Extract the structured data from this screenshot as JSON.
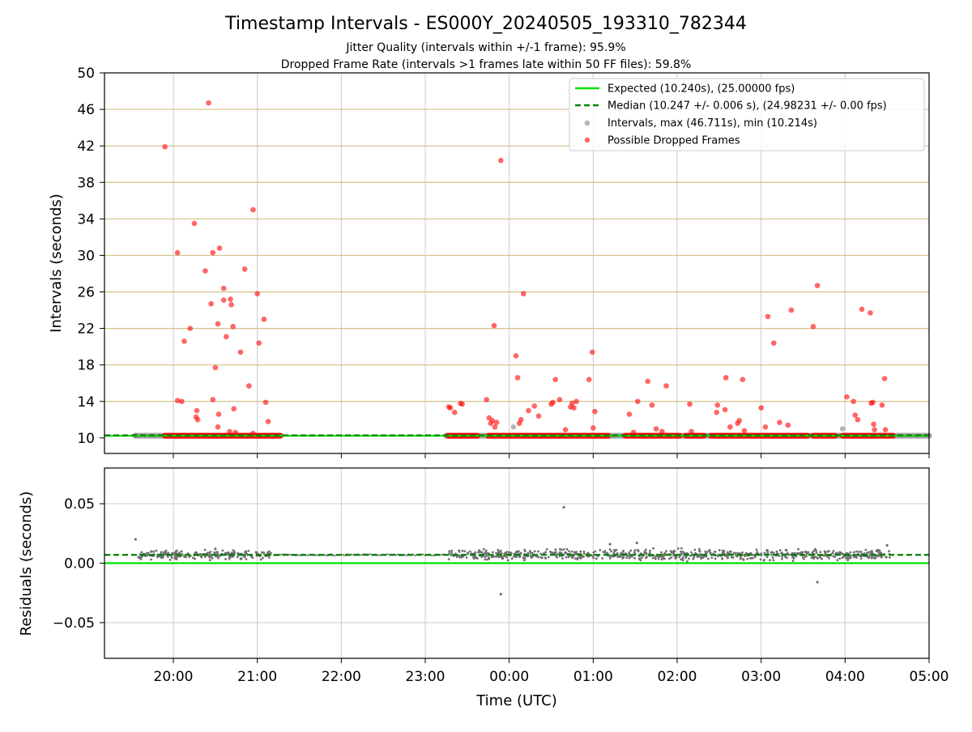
{
  "chart_data": {
    "type": "scatter",
    "title": "Timestamp Intervals - ES000Y_20240505_193310_782344",
    "subtitle_lines": [
      "Jitter Quality (intervals within +/-1 frame): 95.9%",
      "Dropped Frame Rate (intervals >1 frames late within 50 FF files): 59.8%"
    ],
    "xlabel": "Time (UTC)",
    "x_ticks": [
      "20:00",
      "21:00",
      "22:00",
      "23:00",
      "00:00",
      "01:00",
      "02:00",
      "03:00",
      "04:00",
      "05:00"
    ],
    "x_tick_hours": [
      20,
      21,
      22,
      23,
      24,
      25,
      26,
      27,
      28,
      29
    ],
    "xlim_hours": [
      19.18,
      29.0
    ],
    "colors": {
      "expected": "#00e000",
      "median": "#008000",
      "intervals": "#808080",
      "dropped": "#ff0000",
      "hgrid_top": "#d4c08a",
      "grid": "#cccccc"
    },
    "panels": {
      "intervals": {
        "ylabel": "Intervals (seconds)",
        "ylim": [
          8.3,
          50
        ],
        "y_ticks": [
          10,
          14,
          18,
          22,
          26,
          30,
          34,
          38,
          42,
          46,
          50
        ],
        "legend": {
          "position": "top-right",
          "entries": [
            {
              "label": "Expected (10.240s), (25.00000 fps)",
              "kind": "solid-line",
              "color": "#00e000"
            },
            {
              "label": "Median (10.247 +/- 0.006 s), (24.98231 +/- 0.00 fps)",
              "kind": "dashed-line",
              "color": "#008000"
            },
            {
              "label": "Intervals, max (46.711s), min (10.214s)",
              "kind": "marker",
              "color": "#808080"
            },
            {
              "label": "Possible Dropped Frames",
              "kind": "marker",
              "color": "#ff0000"
            }
          ]
        },
        "expected_value": 10.24,
        "median_value": 10.247,
        "baseline_interval_segments": [
          [
            19.55,
            21.28
          ],
          [
            23.25,
            29.0
          ]
        ],
        "dropped_baseline_segments": [
          [
            19.9,
            21.27
          ],
          [
            23.27,
            23.62
          ],
          [
            23.75,
            24.05
          ],
          [
            24.05,
            25.18
          ],
          [
            25.38,
            26.03
          ],
          [
            26.1,
            26.32
          ],
          [
            26.4,
            26.95
          ],
          [
            26.97,
            27.55
          ],
          [
            27.62,
            27.88
          ],
          [
            27.97,
            28.57
          ]
        ],
        "dropped_points": [
          [
            19.9,
            41.9
          ],
          [
            20.05,
            30.3
          ],
          [
            20.05,
            14.1
          ],
          [
            20.1,
            14.0
          ],
          [
            20.13,
            20.6
          ],
          [
            20.2,
            22.0
          ],
          [
            20.25,
            33.5
          ],
          [
            20.27,
            12.3
          ],
          [
            20.28,
            13.0
          ],
          [
            20.29,
            12.0
          ],
          [
            20.38,
            28.3
          ],
          [
            20.42,
            46.7
          ],
          [
            20.45,
            24.7
          ],
          [
            20.47,
            30.3
          ],
          [
            20.47,
            14.2
          ],
          [
            20.5,
            17.7
          ],
          [
            20.53,
            22.5
          ],
          [
            20.53,
            11.2
          ],
          [
            20.54,
            12.6
          ],
          [
            20.55,
            30.8
          ],
          [
            20.6,
            25.1
          ],
          [
            20.6,
            26.4
          ],
          [
            20.63,
            21.1
          ],
          [
            20.67,
            10.7
          ],
          [
            20.68,
            25.2
          ],
          [
            20.69,
            24.6
          ],
          [
            20.71,
            22.2
          ],
          [
            20.72,
            13.2
          ],
          [
            20.74,
            10.6
          ],
          [
            20.8,
            19.4
          ],
          [
            20.85,
            28.5
          ],
          [
            20.9,
            15.7
          ],
          [
            20.95,
            35.0
          ],
          [
            20.95,
            10.5
          ],
          [
            21.0,
            25.8
          ],
          [
            21.02,
            20.4
          ],
          [
            21.08,
            23.0
          ],
          [
            21.1,
            13.9
          ],
          [
            21.13,
            11.8
          ],
          [
            23.28,
            13.4
          ],
          [
            23.3,
            13.3
          ],
          [
            23.35,
            12.8
          ],
          [
            23.42,
            13.8
          ],
          [
            23.44,
            13.7
          ],
          [
            23.73,
            14.2
          ],
          [
            23.76,
            12.2
          ],
          [
            23.78,
            11.6
          ],
          [
            23.8,
            11.9
          ],
          [
            23.82,
            22.3
          ],
          [
            23.83,
            11.2
          ],
          [
            23.85,
            11.7
          ],
          [
            23.9,
            40.4
          ],
          [
            24.08,
            19.0
          ],
          [
            24.1,
            16.6
          ],
          [
            24.12,
            11.6
          ],
          [
            24.14,
            12.0
          ],
          [
            24.17,
            25.8
          ],
          [
            24.23,
            13.0
          ],
          [
            24.3,
            13.5
          ],
          [
            24.35,
            12.4
          ],
          [
            24.5,
            13.7
          ],
          [
            24.52,
            13.9
          ],
          [
            24.55,
            16.4
          ],
          [
            24.6,
            14.2
          ],
          [
            24.67,
            10.9
          ],
          [
            24.73,
            13.4
          ],
          [
            24.75,
            13.8
          ],
          [
            24.77,
            13.3
          ],
          [
            24.8,
            14.0
          ],
          [
            24.95,
            16.4
          ],
          [
            24.99,
            19.4
          ],
          [
            25.0,
            11.1
          ],
          [
            25.02,
            12.9
          ],
          [
            25.43,
            12.6
          ],
          [
            25.48,
            10.6
          ],
          [
            25.53,
            14.0
          ],
          [
            25.65,
            16.2
          ],
          [
            25.7,
            13.6
          ],
          [
            25.75,
            11.0
          ],
          [
            25.82,
            10.7
          ],
          [
            25.87,
            15.7
          ],
          [
            26.15,
            13.7
          ],
          [
            26.17,
            10.7
          ],
          [
            26.47,
            12.8
          ],
          [
            26.48,
            13.6
          ],
          [
            26.57,
            13.1
          ],
          [
            26.58,
            16.6
          ],
          [
            26.63,
            11.2
          ],
          [
            26.72,
            11.6
          ],
          [
            26.74,
            11.9
          ],
          [
            26.78,
            16.4
          ],
          [
            26.8,
            10.8
          ],
          [
            27.0,
            13.3
          ],
          [
            27.05,
            11.2
          ],
          [
            27.08,
            23.3
          ],
          [
            27.15,
            20.4
          ],
          [
            27.22,
            11.7
          ],
          [
            27.32,
            11.4
          ],
          [
            27.36,
            24.0
          ],
          [
            27.62,
            22.2
          ],
          [
            27.67,
            26.7
          ],
          [
            28.02,
            14.5
          ],
          [
            28.1,
            14.0
          ],
          [
            28.12,
            12.5
          ],
          [
            28.15,
            12.0
          ],
          [
            28.2,
            24.1
          ],
          [
            28.3,
            23.7
          ],
          [
            28.31,
            13.8
          ],
          [
            28.33,
            13.9
          ],
          [
            28.34,
            11.5
          ],
          [
            28.35,
            10.9
          ],
          [
            28.44,
            13.6
          ],
          [
            28.47,
            16.5
          ],
          [
            28.48,
            10.9
          ]
        ],
        "interval_outliers": [
          [
            19.55,
            10.24
          ],
          [
            24.05,
            11.2
          ],
          [
            27.97,
            11.0
          ]
        ]
      },
      "residuals": {
        "ylabel": "Residuals (seconds)",
        "ylim": [
          -0.08,
          0.08
        ],
        "y_ticks": [
          0.05,
          0.0,
          -0.05
        ],
        "y_tick_labels": [
          "0.05",
          "0.00",
          "−0.05"
        ],
        "expected_value": 0.0,
        "median_value": 0.007,
        "base_level": 0.007,
        "dense_ranges": [
          [
            19.58,
            21.18,
            0.0025
          ],
          [
            23.27,
            28.55,
            0.003
          ]
        ],
        "sparse_range": [
          21.2,
          23.25,
          0.001
        ],
        "outliers": [
          [
            19.55,
            0.02
          ],
          [
            20.5,
            0.012
          ],
          [
            23.9,
            -0.026
          ],
          [
            24.65,
            0.047
          ],
          [
            25.2,
            0.016
          ],
          [
            25.52,
            0.017
          ],
          [
            27.67,
            -0.016
          ],
          [
            28.5,
            0.015
          ]
        ]
      }
    }
  }
}
